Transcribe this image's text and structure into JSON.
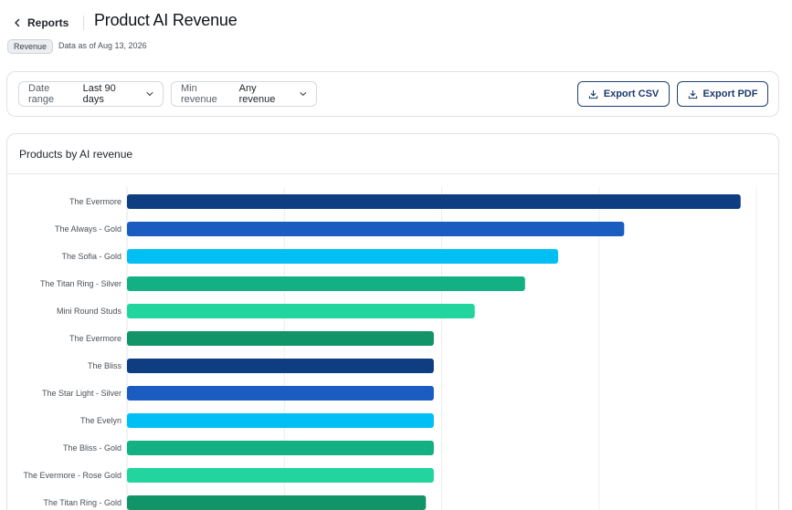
{
  "header": {
    "back_label": "Reports",
    "title": "Product AI Revenue",
    "badge": "Revenue",
    "as_of": "Data as of Aug 13, 2026"
  },
  "filters": {
    "date_range": {
      "label": "Date range",
      "value": "Last 90 days"
    },
    "min_revenue": {
      "label": "Min revenue",
      "value": "Any revenue"
    }
  },
  "actions": {
    "export_csv": "Export CSV",
    "export_pdf": "Export PDF"
  },
  "chart_card": {
    "title": "Products by AI revenue"
  },
  "chart_data": {
    "type": "bar",
    "orientation": "horizontal",
    "categories": [
      "The Evermore",
      "The Always - Gold",
      "The Sofia - Gold",
      "The Titan Ring - Silver",
      "Mini Round Studs",
      "The Evermore",
      "The Bliss",
      "The Star Light - Silver",
      "The Evelyn",
      "The Bliss - Gold",
      "The Evermore - Rose Gold",
      "The Titan Ring - Gold"
    ],
    "values": [
      3.9,
      3.16,
      2.74,
      2.53,
      2.21,
      1.95,
      1.95,
      1.95,
      1.95,
      1.95,
      1.95,
      1.9
    ],
    "xlim": [
      0,
      4
    ],
    "grid": true,
    "colors": [
      "#0f3d82",
      "#1a5cbf",
      "#00bff5",
      "#13b084",
      "#22d49e",
      "#119468"
    ]
  }
}
